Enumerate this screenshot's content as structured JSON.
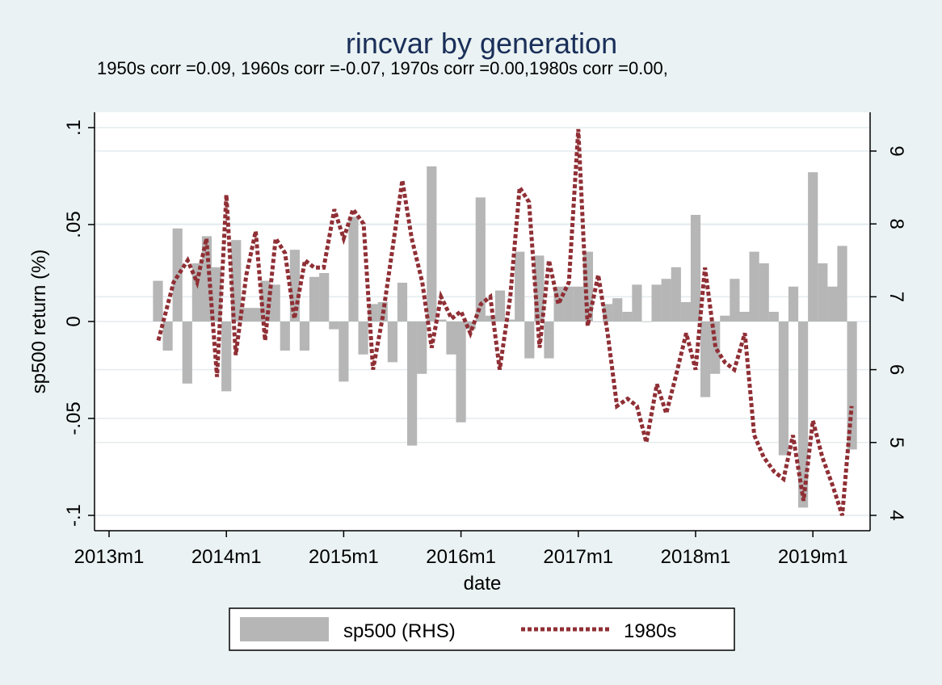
{
  "chart_data": {
    "type": "bar",
    "title": "rincvar by generation",
    "subtitle": "1950s corr =0.09, 1960s corr =-0.07, 1970s corr =0.00,1980s corr =0.00,",
    "xlabel": "date",
    "ylabel": "sp500 return (%)",
    "x_tick_labels": [
      "2013m1",
      "2014m1",
      "2015m1",
      "2016m1",
      "2017m1",
      "2018m1",
      "2019m1"
    ],
    "y_left_ticks": [
      0.1,
      0.05,
      0,
      -0.05,
      -0.1
    ],
    "y_left_tick_labels": [
      ".1",
      ".05",
      "0",
      "-.05",
      "-.1"
    ],
    "y_right_ticks": [
      9,
      8,
      7,
      6,
      5,
      4
    ],
    "y_right_tick_labels": [
      "9",
      "8",
      "7",
      "6",
      "5",
      "4"
    ],
    "ylim_left": [
      -0.1,
      0.1
    ],
    "ylim_right": [
      4,
      9.5
    ],
    "x_range": [
      "2013m1",
      "2019m6"
    ],
    "grid": true,
    "legend_position": "bottom",
    "colors": {
      "bars": "#b6b6b6",
      "line": "#8f2f35",
      "title": "#1a2f59",
      "background": "#eaf2f3",
      "plot_background": "#ffffff"
    },
    "series": [
      {
        "name": "sp500 (RHS)",
        "kind": "bar",
        "axis": "left",
        "months": [
          "2013m6",
          "2013m7",
          "2013m8",
          "2013m9",
          "2013m10",
          "2013m11",
          "2013m12",
          "2014m1",
          "2014m2",
          "2014m3",
          "2014m4",
          "2014m5",
          "2014m6",
          "2014m7",
          "2014m8",
          "2014m9",
          "2014m10",
          "2014m11",
          "2014m12",
          "2015m1",
          "2015m2",
          "2015m3",
          "2015m4",
          "2015m5",
          "2015m6",
          "2015m7",
          "2015m8",
          "2015m9",
          "2015m10",
          "2015m11",
          "2015m12",
          "2016m1",
          "2016m2",
          "2016m3",
          "2016m4",
          "2016m5",
          "2016m6",
          "2016m7",
          "2016m8",
          "2016m9",
          "2016m10",
          "2016m11",
          "2016m12",
          "2017m1",
          "2017m2",
          "2017m3",
          "2017m4",
          "2017m5",
          "2017m6",
          "2017m7",
          "2017m8",
          "2017m9",
          "2017m10",
          "2017m11",
          "2017m12",
          "2018m1",
          "2018m2",
          "2018m3",
          "2018m4",
          "2018m5",
          "2018m6",
          "2018m7",
          "2018m8",
          "2018m9",
          "2018m10",
          "2018m11",
          "2018m12",
          "2019m1",
          "2019m2",
          "2019m3",
          "2019m4",
          "2019m5"
        ],
        "values": [
          0.021,
          -0.015,
          0.048,
          -0.032,
          0.03,
          0.044,
          0.028,
          -0.036,
          0.042,
          0.007,
          0.007,
          0.021,
          0.019,
          -0.015,
          0.037,
          -0.015,
          0.023,
          0.025,
          -0.004,
          -0.031,
          0.054,
          -0.017,
          0.009,
          0.01,
          -0.021,
          0.02,
          -0.064,
          -0.027,
          0.08,
          0.001,
          -0.017,
          -0.052,
          -0.004,
          0.064,
          0.003,
          0.016,
          0.001,
          0.036,
          -0.019,
          0.034,
          -0.019,
          0.018,
          0.018,
          0.018,
          0.036,
          0.0,
          0.009,
          0.012,
          0.005,
          0.019,
          0.0,
          0.019,
          0.022,
          0.028,
          0.01,
          0.055,
          -0.039,
          -0.027,
          0.003,
          0.022,
          0.005,
          0.036,
          0.03,
          0.005,
          -0.069,
          0.018,
          -0.096,
          0.077,
          0.03,
          0.018,
          0.039,
          -0.066
        ]
      },
      {
        "name": "1980s",
        "kind": "line",
        "style": "dotted",
        "axis": "right",
        "x": [
          2013.42,
          2013.55,
          2013.67,
          2013.75,
          2013.83,
          2013.92,
          2014.0,
          2014.08,
          2014.17,
          2014.25,
          2014.33,
          2014.42,
          2014.5,
          2014.58,
          2014.67,
          2014.75,
          2014.83,
          2014.92,
          2015.0,
          2015.08,
          2015.17,
          2015.25,
          2015.33,
          2015.42,
          2015.5,
          2015.58,
          2015.67,
          2015.75,
          2015.83,
          2015.92,
          2016.0,
          2016.08,
          2016.17,
          2016.25,
          2016.33,
          2016.42,
          2016.5,
          2016.58,
          2016.67,
          2016.75,
          2016.83,
          2016.92,
          2017.0,
          2017.08,
          2017.17,
          2017.25,
          2017.33,
          2017.42,
          2017.5,
          2017.58,
          2017.67,
          2017.75,
          2017.83,
          2017.92,
          2018.0,
          2018.08,
          2018.17,
          2018.25,
          2018.33,
          2018.42,
          2018.5,
          2018.58,
          2018.67,
          2018.75,
          2018.83,
          2018.92,
          2019.0,
          2019.08,
          2019.17,
          2019.25,
          2019.33
        ],
        "values": [
          6.4,
          7.2,
          7.5,
          7.2,
          7.8,
          5.9,
          8.4,
          6.2,
          7.3,
          7.9,
          6.4,
          7.8,
          7.6,
          6.7,
          7.5,
          7.4,
          7.4,
          8.2,
          7.8,
          8.2,
          8.0,
          6.0,
          6.7,
          7.7,
          8.6,
          7.8,
          7.2,
          6.3,
          7.0,
          6.7,
          6.8,
          6.5,
          6.9,
          7.0,
          6.0,
          7.0,
          8.5,
          8.3,
          6.3,
          7.5,
          6.9,
          7.2,
          9.3,
          6.6,
          7.3,
          6.5,
          5.5,
          5.6,
          5.5,
          5.0,
          5.8,
          5.4,
          5.9,
          6.5,
          6.0,
          7.4,
          6.3,
          6.1,
          6.0,
          6.5,
          5.1,
          4.8,
          4.6,
          4.5,
          5.1,
          4.2,
          5.3,
          4.8,
          4.4,
          4.0,
          5.5
        ]
      }
    ]
  }
}
